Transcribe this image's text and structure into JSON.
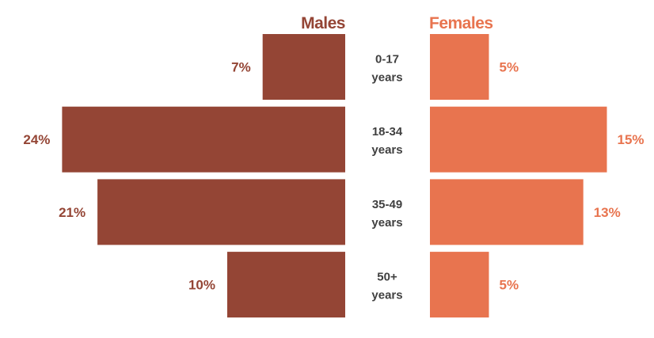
{
  "chart_data": {
    "type": "bar",
    "orientation": "horizontal",
    "layout": "population-pyramid",
    "categories": [
      [
        "0-17",
        "years"
      ],
      [
        "18-34",
        "years"
      ],
      [
        "35-49",
        "years"
      ],
      [
        "50+",
        "years"
      ]
    ],
    "series": [
      {
        "name": "Males",
        "side": "left",
        "color": "#944535",
        "values": [
          7,
          24,
          21,
          10
        ],
        "labels": [
          "7%",
          "24%",
          "21%",
          "10%"
        ]
      },
      {
        "name": "Females",
        "side": "right",
        "color": "#E8744F",
        "values": [
          5,
          15,
          13,
          5
        ],
        "labels": [
          "5%",
          "15%",
          "13%",
          "5%"
        ]
      }
    ],
    "unit": "%",
    "grid": false,
    "legend": "series titles above each side"
  }
}
